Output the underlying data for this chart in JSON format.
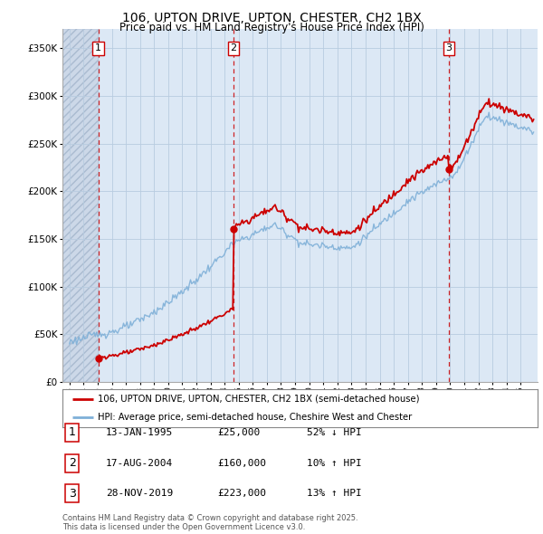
{
  "title_line1": "106, UPTON DRIVE, UPTON, CHESTER, CH2 1BX",
  "title_line2": "Price paid vs. HM Land Registry's House Price Index (HPI)",
  "bg_color": "#ffffff",
  "plot_bg_color": "#dce8f5",
  "grid_color": "#b8cce0",
  "red_color": "#cc0000",
  "blue_color": "#7fb0d8",
  "sale_dates_num": [
    1995.04,
    2004.63,
    2019.91
  ],
  "sale_prices": [
    25000,
    160000,
    223000
  ],
  "legend_line1": "106, UPTON DRIVE, UPTON, CHESTER, CH2 1BX (semi-detached house)",
  "legend_line2": "HPI: Average price, semi-detached house, Cheshire West and Chester",
  "table_rows": [
    [
      "1",
      "13-JAN-1995",
      "£25,000",
      "52% ↓ HPI"
    ],
    [
      "2",
      "17-AUG-2004",
      "£160,000",
      "10% ↑ HPI"
    ],
    [
      "3",
      "28-NOV-2019",
      "£223,000",
      "13% ↑ HPI"
    ]
  ],
  "footnote": "Contains HM Land Registry data © Crown copyright and database right 2025.\nThis data is licensed under the Open Government Licence v3.0.",
  "ylim": [
    0,
    370000
  ],
  "xlim_start": 1992.5,
  "xlim_end": 2026.2,
  "yticks": [
    0,
    50000,
    100000,
    150000,
    200000,
    250000,
    300000,
    350000
  ],
  "ytick_labels": [
    "£0",
    "£50K",
    "£100K",
    "£150K",
    "£200K",
    "£250K",
    "£300K",
    "£350K"
  ],
  "xtick_years": [
    1993,
    1994,
    1995,
    1996,
    1997,
    1998,
    1999,
    2000,
    2001,
    2002,
    2003,
    2004,
    2005,
    2006,
    2007,
    2008,
    2009,
    2010,
    2011,
    2012,
    2013,
    2014,
    2015,
    2016,
    2017,
    2018,
    2019,
    2020,
    2021,
    2022,
    2023,
    2024,
    2025
  ],
  "vline_color": "#cc0000",
  "hatch_end": 1995.04
}
